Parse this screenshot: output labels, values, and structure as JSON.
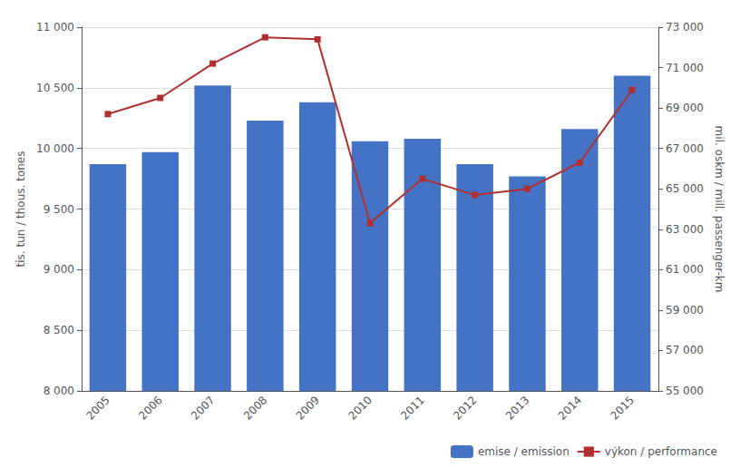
{
  "chart_data": {
    "type": "bar",
    "categories": [
      "2005",
      "2006",
      "2007",
      "2008",
      "2009",
      "2010",
      "2011",
      "2012",
      "2013",
      "2014",
      "2015"
    ],
    "series": [
      {
        "name": "emise / emission",
        "type": "bar",
        "color": "#4472C4",
        "values": [
          9870,
          9970,
          10520,
          10230,
          10380,
          10060,
          10080,
          9870,
          9770,
          10160,
          10600
        ]
      },
      {
        "name": "výkon / performance",
        "type": "line",
        "axis": "y2",
        "color": "#B03030",
        "marker": "square",
        "values": [
          68700,
          69500,
          71200,
          72500,
          72400,
          63300,
          65500,
          64700,
          65000,
          66300,
          69900
        ]
      }
    ],
    "ylabel": "tis. tun / thous. tones",
    "y2label": "mil. oskm / mill. passenger-km",
    "ylim": [
      8000,
      11000
    ],
    "yticks": [
      {
        "value": 8000,
        "label": "8 000"
      },
      {
        "value": 8500,
        "label": "8 500"
      },
      {
        "value": 9000,
        "label": "9 000"
      },
      {
        "value": 9500,
        "label": "9 500"
      },
      {
        "value": 10000,
        "label": "10 000"
      },
      {
        "value": 10500,
        "label": "10 500"
      },
      {
        "value": 11000,
        "label": "11 000"
      }
    ],
    "y2lim": [
      55000,
      73000
    ],
    "y2ticks": [
      {
        "value": 55000,
        "label": "55 000"
      },
      {
        "value": 57000,
        "label": "57 000"
      },
      {
        "value": 59000,
        "label": "59 000"
      },
      {
        "value": 61000,
        "label": "61 000"
      },
      {
        "value": 63000,
        "label": "63 000"
      },
      {
        "value": 65000,
        "label": "65 000"
      },
      {
        "value": 67000,
        "label": "67 000"
      },
      {
        "value": 69000,
        "label": "69 000"
      },
      {
        "value": 71000,
        "label": "71 000"
      },
      {
        "value": 73000,
        "label": "73 000"
      }
    ],
    "grid": true,
    "legend": "lower right"
  }
}
